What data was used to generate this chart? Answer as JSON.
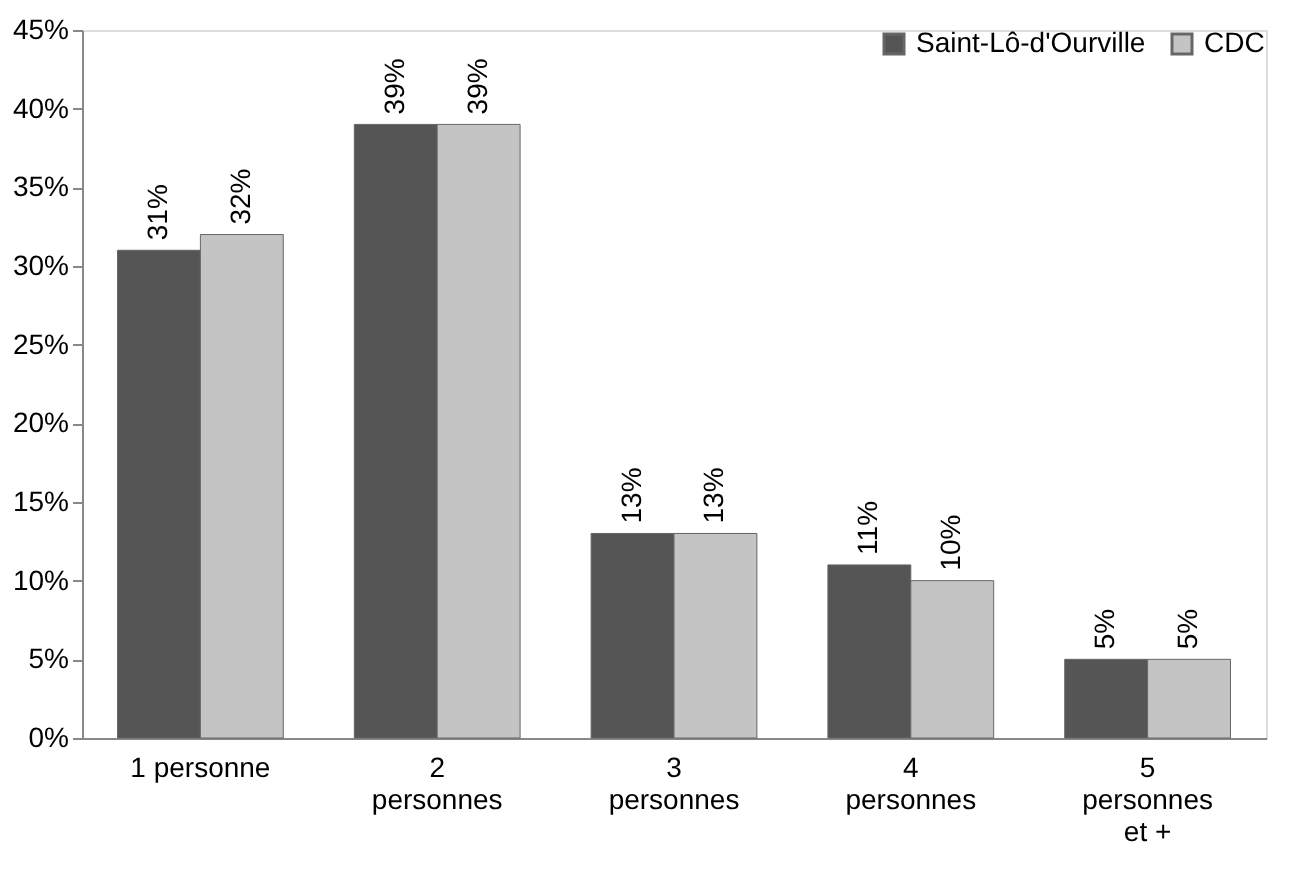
{
  "chart_data": {
    "type": "bar",
    "categories": [
      "1 personne",
      "2\npersonnes",
      "3\npersonnes",
      "4\npersonnes",
      "5\npersonnes\net +"
    ],
    "series": [
      {
        "name": "Saint-Lô-d'Ourville",
        "color": "#555555",
        "values": [
          31,
          39,
          13,
          11,
          5
        ],
        "value_labels": [
          "31%",
          "39%",
          "13%",
          "11%",
          "5%"
        ]
      },
      {
        "name": "CDC",
        "color": "#c4c4c4",
        "values": [
          32,
          39,
          13,
          10,
          5
        ],
        "value_labels": [
          "32%",
          "39%",
          "13%",
          "10%",
          "5%"
        ]
      }
    ],
    "ylim": [
      0,
      45
    ],
    "yticks": [
      {
        "value": 0,
        "label": "0%"
      },
      {
        "value": 5,
        "label": "5%"
      },
      {
        "value": 10,
        "label": "10%"
      },
      {
        "value": 15,
        "label": "15%"
      },
      {
        "value": 20,
        "label": "20%"
      },
      {
        "value": 25,
        "label": "25%"
      },
      {
        "value": 30,
        "label": "30%"
      },
      {
        "value": 35,
        "label": "35%"
      },
      {
        "value": 40,
        "label": "40%"
      },
      {
        "value": 45,
        "label": "45%"
      }
    ],
    "grid": false,
    "legend": "top right"
  }
}
